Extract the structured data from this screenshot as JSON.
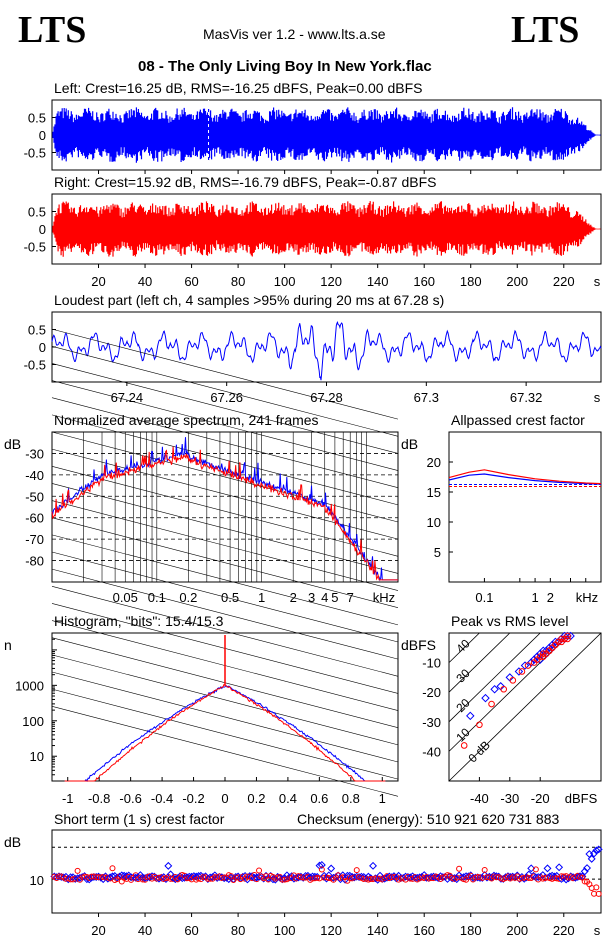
{
  "header": {
    "logo_left": "LTS",
    "logo_right": "LTS",
    "app_title": "MasVis ver 1.2 - www.lts.a.se",
    "track_title": "08 - The Only Living Boy In New York.flac"
  },
  "colors": {
    "left": "#0000ff",
    "right": "#ff0000",
    "axis": "#000000"
  },
  "chart_data": [
    {
      "id": "left_waveform",
      "type": "area",
      "title": "Left: Crest=16.25 dB, RMS=-16.25 dBFS, Peak=0.00 dBFS",
      "yticks": [
        "0.5",
        "0",
        "-0.5"
      ],
      "ylim": [
        -1,
        1
      ],
      "xlim": [
        0,
        236
      ],
      "xunit": "s",
      "envelope_peak": 0.8
    },
    {
      "id": "right_waveform",
      "type": "area",
      "title": "Right: Crest=15.92 dB, RMS=-16.79 dBFS, Peak=-0.87 dBFS",
      "yticks": [
        "0.5",
        "0",
        "-0.5"
      ],
      "ylim": [
        -1,
        1
      ],
      "xlim": [
        0,
        236
      ],
      "xticks": [
        "20",
        "40",
        "60",
        "80",
        "100",
        "120",
        "140",
        "160",
        "180",
        "200",
        "220"
      ],
      "xunit": "s",
      "envelope_peak": 0.8
    },
    {
      "id": "loudest_part",
      "type": "line",
      "title": "Loudest part (left  ch, 4 samples >95% during 20 ms at 67.28 s)",
      "yticks": [
        "0.5",
        "0",
        "-0.5"
      ],
      "ylim": [
        -1,
        1
      ],
      "xlim": [
        67.225,
        67.335
      ],
      "xticks": [
        "67.24",
        "67.26",
        "67.28",
        "67.3",
        "67.32"
      ],
      "xunit": "s"
    },
    {
      "id": "avg_spectrum",
      "type": "line",
      "title": "Normalized average spectrum, 241 frames",
      "ylabel": "dB",
      "yticks": [
        "-30",
        "-40",
        "-50",
        "-60",
        "-70",
        "-80"
      ],
      "ylim": [
        -90,
        -20
      ],
      "xscale": "log",
      "xlim": [
        0.01,
        20
      ],
      "xticks": [
        "0.05",
        "0.1",
        "0.2",
        "0.5",
        "1",
        "2",
        "3",
        "4",
        "5",
        "7"
      ],
      "xunit": "kHz"
    },
    {
      "id": "allpassed_crest",
      "type": "line",
      "title": "Allpassed crest factor",
      "ylabel": "dB",
      "yticks": [
        "20",
        "15",
        "10",
        "5"
      ],
      "ylim": [
        0,
        25
      ],
      "xscale": "log",
      "xlim": [
        0.02,
        20
      ],
      "xticks": [
        "0.1",
        "1",
        "2"
      ],
      "xunit": "kHz",
      "series": [
        {
          "color": "blue",
          "x": [
            0.02,
            0.05,
            0.1,
            0.3,
            1,
            3,
            10,
            20
          ],
          "values": [
            17.0,
            17.8,
            18.0,
            17.4,
            16.9,
            16.6,
            16.4,
            16.3
          ]
        },
        {
          "color": "red",
          "x": [
            0.02,
            0.05,
            0.1,
            0.3,
            1,
            3,
            10,
            20
          ],
          "values": [
            17.4,
            18.3,
            18.7,
            17.9,
            17.2,
            16.8,
            16.5,
            16.4
          ]
        }
      ],
      "reference_lines": [
        16.25,
        15.92
      ]
    },
    {
      "id": "histogram",
      "type": "line",
      "title": "Histogram, \"bits\": 15.4/15.3",
      "ylabel": "n",
      "yscale": "log",
      "yticks": [
        "1000",
        "100",
        "10"
      ],
      "ylim": [
        2,
        30000
      ],
      "xlim": [
        -1.1,
        1.1
      ],
      "xticks": [
        "-1",
        "-0.8",
        "-0.6",
        "-0.4",
        "-0.2",
        "0",
        "0.2",
        "0.4",
        "0.6",
        "0.8",
        "1"
      ],
      "peak_at_zero": 1000
    },
    {
      "id": "peak_vs_rms",
      "type": "scatter",
      "title": "Peak vs RMS level",
      "ylabel": "dBFS",
      "xlabel": "dBFS",
      "yticks": [
        "-10",
        "-20",
        "-30",
        "-40"
      ],
      "xticks": [
        "-40",
        "-30",
        "-20"
      ],
      "xlim": [
        -50,
        0
      ],
      "ylim": [
        -50,
        0
      ],
      "diagonal_labels": [
        "40",
        "30",
        "20",
        "10",
        "0 dB"
      ],
      "series": [
        {
          "color": "blue",
          "x": [
            -43,
            -38,
            -35,
            -33,
            -30,
            -27,
            -25,
            -23,
            -22,
            -21,
            -20,
            -19,
            -18,
            -17,
            -16,
            -15,
            -14,
            -13,
            -12,
            -11,
            -20,
            -18,
            -16,
            -14,
            -12,
            -10
          ],
          "values": [
            -28,
            -22,
            -19,
            -18,
            -15,
            -13,
            -11,
            -10,
            -9,
            -8,
            -7,
            -6,
            -6,
            -5,
            -4,
            -3,
            -3,
            -2,
            -1,
            -1,
            -9,
            -7,
            -5,
            -3,
            -2,
            -1
          ]
        },
        {
          "color": "red",
          "x": [
            -45,
            -40,
            -36,
            -32,
            -29,
            -26,
            -24,
            -22,
            -21,
            -20,
            -19,
            -18,
            -17,
            -16,
            -15,
            -14,
            -13,
            -12,
            -11,
            -19,
            -17,
            -15,
            -13,
            -11
          ],
          "values": [
            -38,
            -31,
            -24,
            -19,
            -16,
            -13,
            -11,
            -10,
            -9,
            -8,
            -7,
            -7,
            -6,
            -5,
            -4,
            -3,
            -2,
            -2,
            -1,
            -8,
            -6,
            -4,
            -3,
            -2
          ]
        }
      ]
    },
    {
      "id": "short_term_crest",
      "type": "scatter",
      "title": "Short term (1 s) crest factor",
      "checksum": "Checksum (energy):   510 921 620 731 883",
      "ylabel": "dB",
      "yticks": [
        "10"
      ],
      "ylim": [
        0,
        25
      ],
      "xlim": [
        0,
        236
      ],
      "xticks": [
        "20",
        "40",
        "60",
        "80",
        "100",
        "120",
        "140",
        "160",
        "180",
        "200",
        "220"
      ],
      "xunit": "s",
      "reference_lines": [
        10.2,
        19.8
      ]
    }
  ]
}
